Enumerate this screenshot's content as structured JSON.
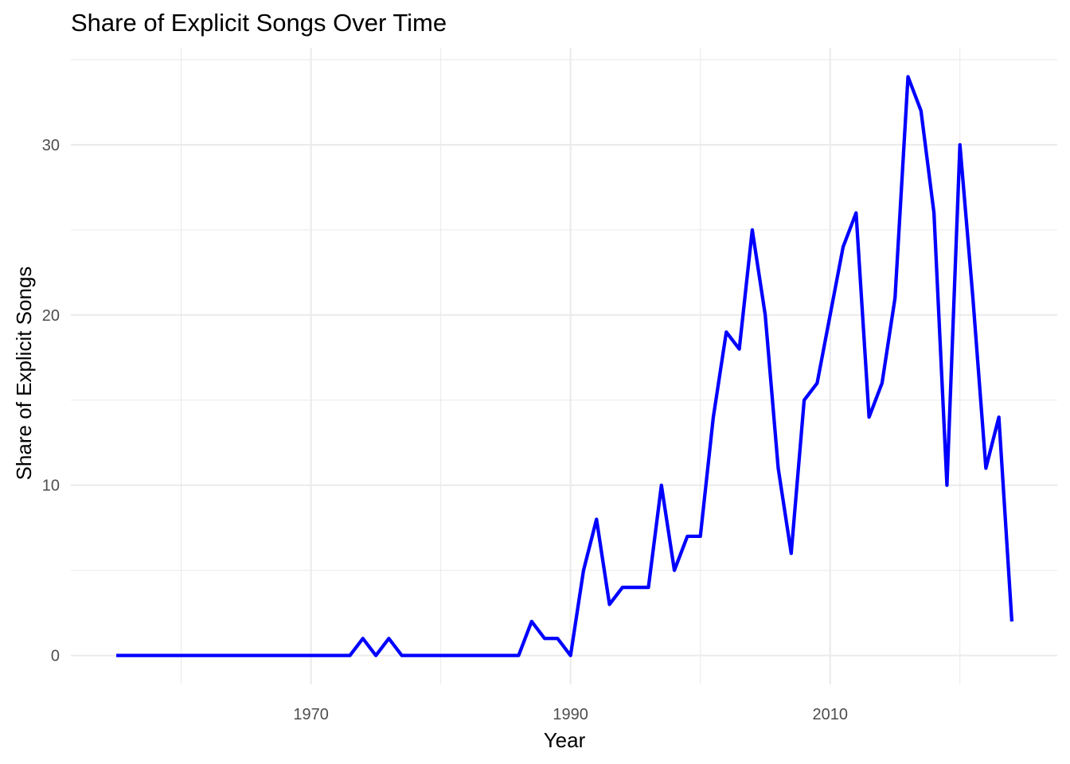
{
  "chart_data": {
    "type": "line",
    "title": "Share of Explicit Songs Over Time",
    "xlabel": "Year",
    "ylabel": "Share of Explicit Songs",
    "xlim": [
      1951.5,
      2027.5
    ],
    "ylim": [
      -1.7,
      35.7
    ],
    "x_ticks": [
      1970,
      1990,
      2010
    ],
    "x_minor_ticks": [
      1960,
      1980,
      2000,
      2020
    ],
    "y_ticks": [
      0,
      10,
      20,
      30
    ],
    "y_minor_ticks": [
      5,
      15,
      25,
      35
    ],
    "grid": true,
    "legend": "none",
    "series": [
      {
        "color": "#0000ff",
        "x": [
          1955,
          1956,
          1957,
          1958,
          1959,
          1960,
          1961,
          1962,
          1963,
          1964,
          1965,
          1966,
          1967,
          1968,
          1969,
          1970,
          1971,
          1972,
          1973,
          1974,
          1975,
          1976,
          1977,
          1978,
          1979,
          1980,
          1981,
          1982,
          1983,
          1984,
          1985,
          1986,
          1987,
          1988,
          1989,
          1990,
          1991,
          1992,
          1993,
          1994,
          1995,
          1996,
          1997,
          1998,
          1999,
          2000,
          2001,
          2002,
          2003,
          2004,
          2005,
          2006,
          2007,
          2008,
          2009,
          2010,
          2011,
          2012,
          2013,
          2014,
          2015,
          2016,
          2017,
          2018,
          2019,
          2020,
          2021,
          2022,
          2023,
          2024
        ],
        "y": [
          0,
          0,
          0,
          0,
          0,
          0,
          0,
          0,
          0,
          0,
          0,
          0,
          0,
          0,
          0,
          0,
          0,
          0,
          0,
          1,
          0,
          1,
          0,
          0,
          0,
          0,
          0,
          0,
          0,
          0,
          0,
          0,
          2,
          1,
          1,
          0,
          5,
          8,
          3,
          4,
          4,
          4,
          10,
          5,
          7,
          7,
          14,
          19,
          18,
          25,
          20,
          11,
          6,
          15,
          16,
          20,
          24,
          26,
          14,
          16,
          21,
          34,
          32,
          26,
          10,
          30,
          21,
          11,
          14,
          2
        ]
      }
    ]
  }
}
